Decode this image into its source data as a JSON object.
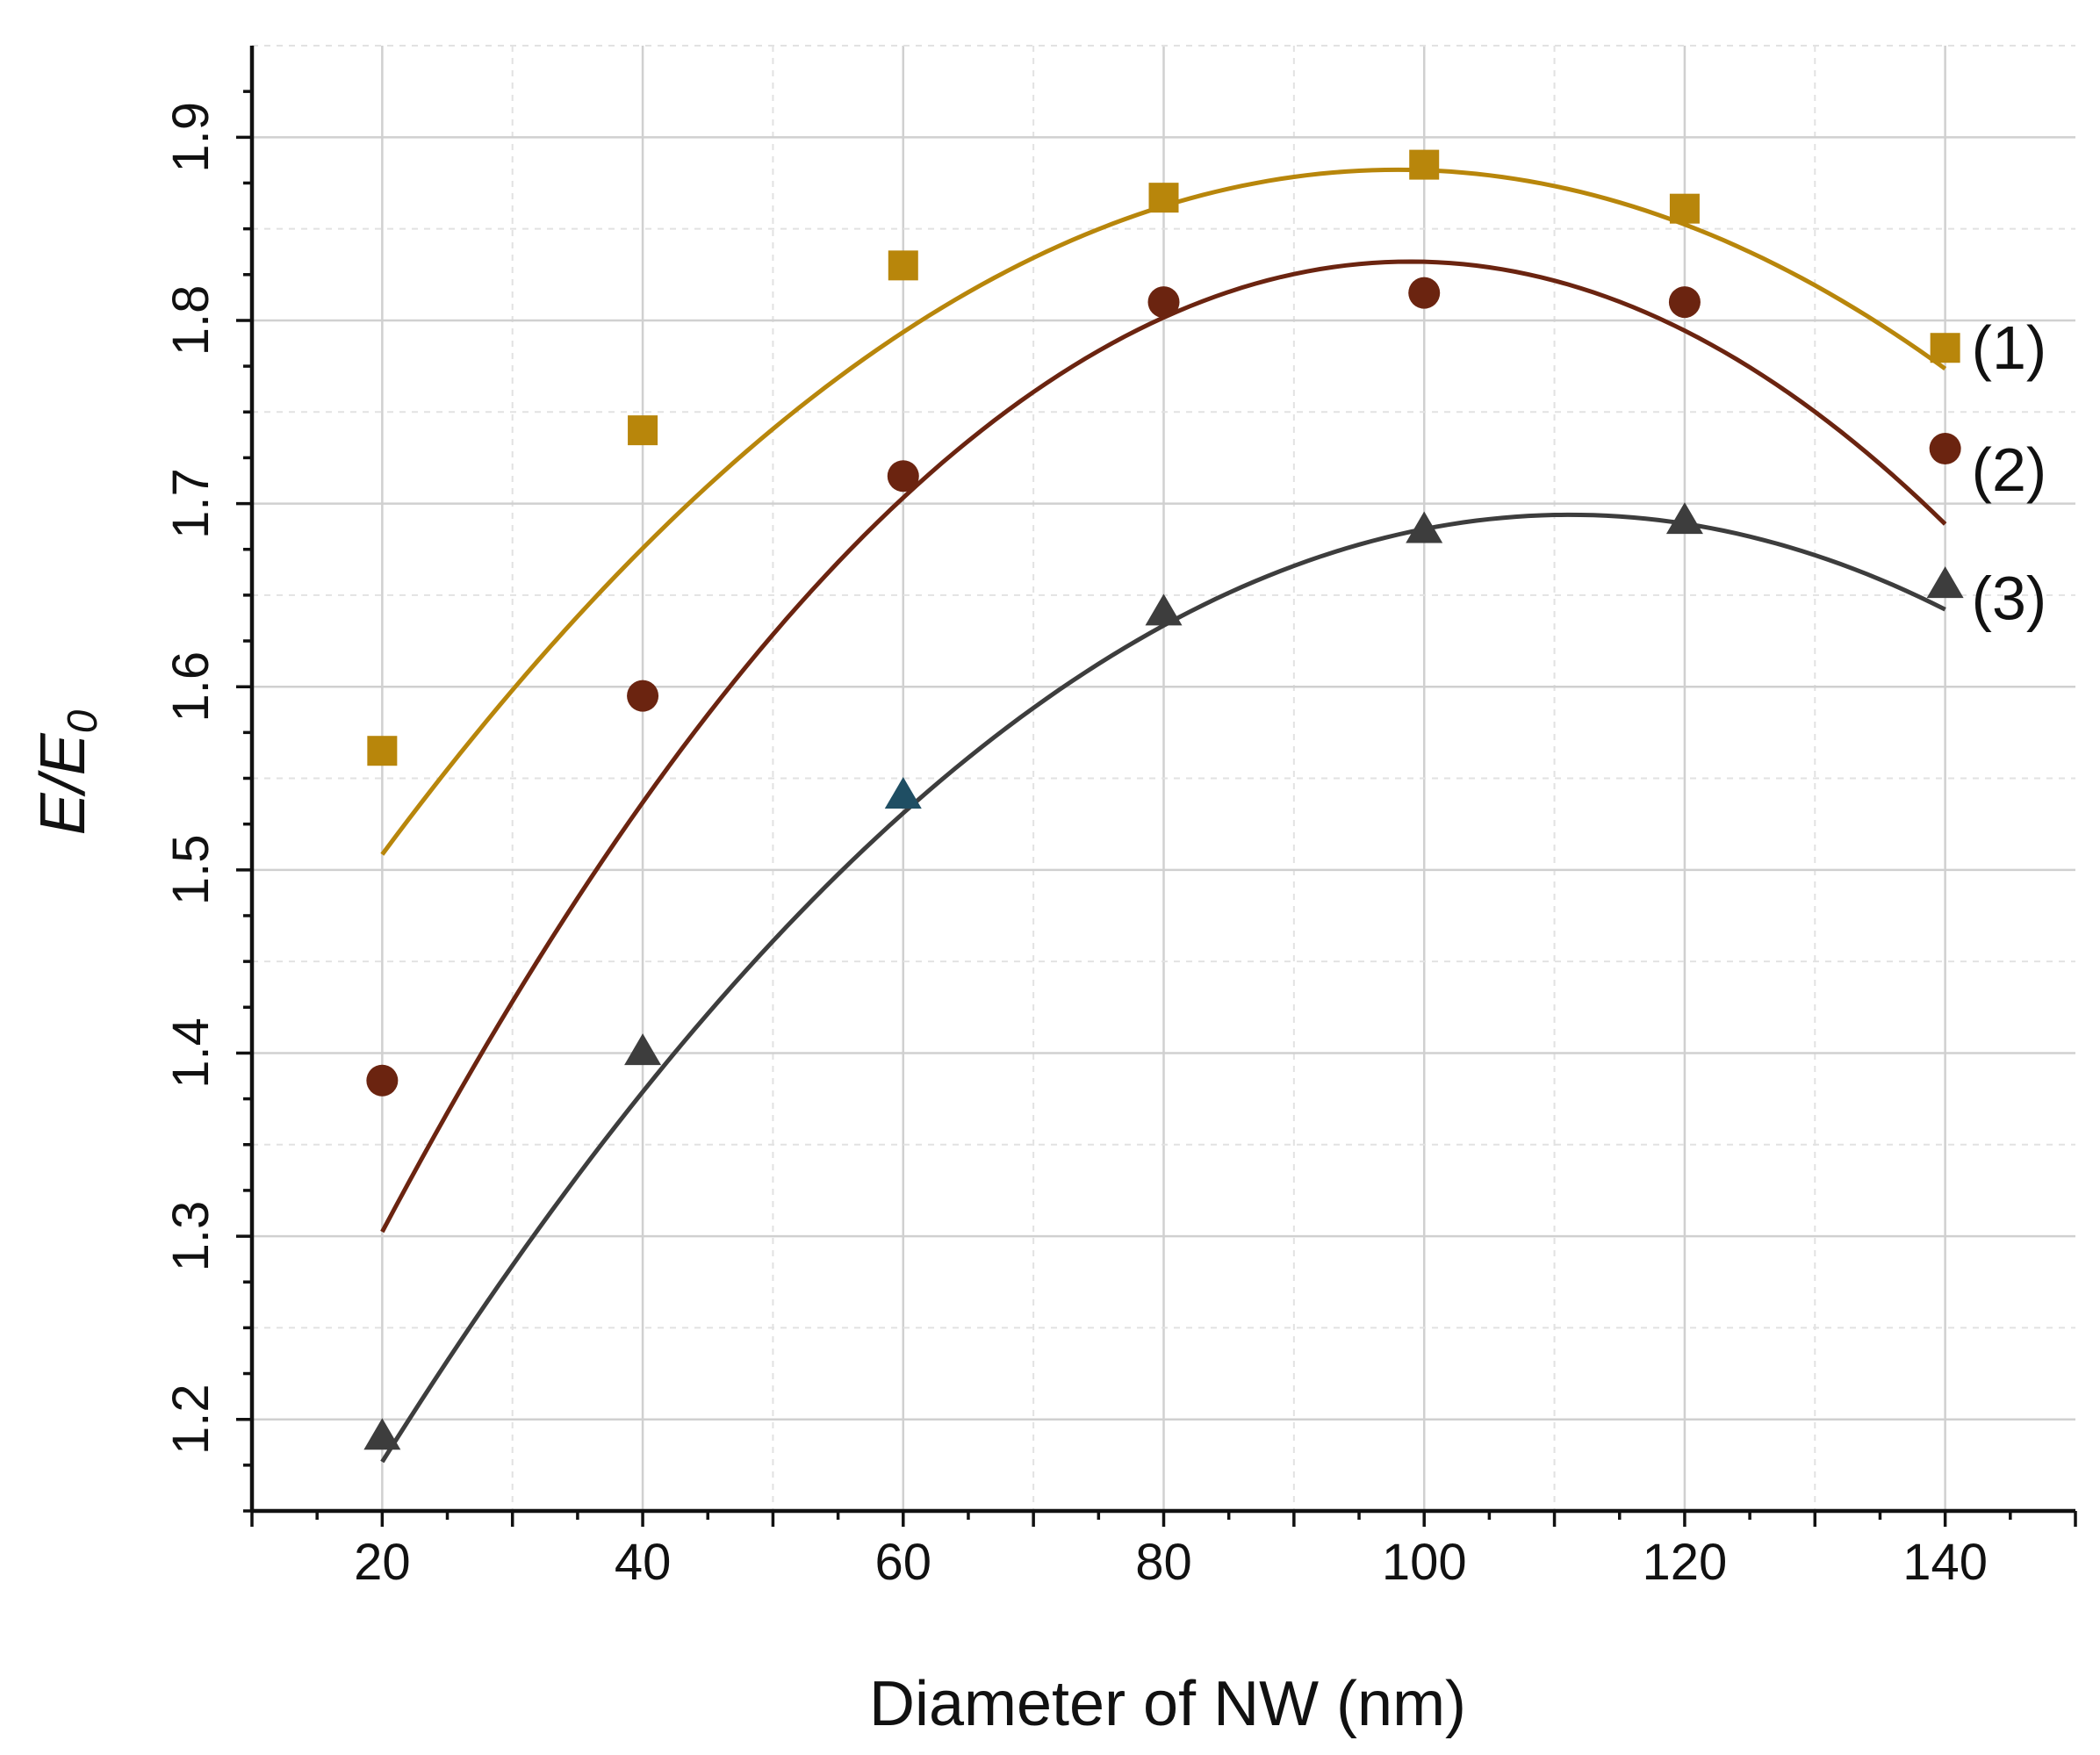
{
  "chart_data": {
    "type": "line",
    "title": "",
    "xlabel": "Diameter of NW (nm)",
    "ylabel_main": "E/E",
    "ylabel_sub": "0",
    "xlim": [
      10,
      150
    ],
    "ylim": [
      1.15,
      1.95
    ],
    "x_ticks": [
      20,
      40,
      60,
      80,
      100,
      120,
      140
    ],
    "y_ticks": [
      1.2,
      1.3,
      1.4,
      1.5,
      1.6,
      1.7,
      1.8,
      1.9
    ],
    "x_tick_labels": [
      "20",
      "40",
      "60",
      "80",
      "100",
      "120",
      "140"
    ],
    "y_tick_labels": [
      "1.2",
      "1.3",
      "1.4",
      "1.5",
      "1.6",
      "1.7",
      "1.8",
      "1.9"
    ],
    "grid": true,
    "x": [
      20,
      40,
      60,
      80,
      100,
      120,
      140
    ],
    "series": [
      {
        "name": "(1)",
        "marker": "square",
        "color": "#b8860b",
        "values": [
          1.565,
          1.74,
          1.83,
          1.867,
          1.885,
          1.861,
          1.785
        ],
        "fit": [
          -6.15e-05,
          0.01205,
          1.292
        ]
      },
      {
        "name": "(2)",
        "marker": "circle",
        "color": "#6b2410",
        "values": [
          1.385,
          1.595,
          1.715,
          1.81,
          1.815,
          1.81,
          1.73
        ],
        "fit": [
          -8.5e-05,
          0.01682,
          1.0
        ]
      },
      {
        "name": "(3)",
        "marker": "triangle",
        "color": "#3d3d3d",
        "values": [
          1.19,
          1.4,
          1.54,
          1.64,
          1.685,
          1.69,
          1.655
        ],
        "fit": [
          -6.22e-05,
          0.01383,
          0.9251
        ]
      }
    ]
  }
}
